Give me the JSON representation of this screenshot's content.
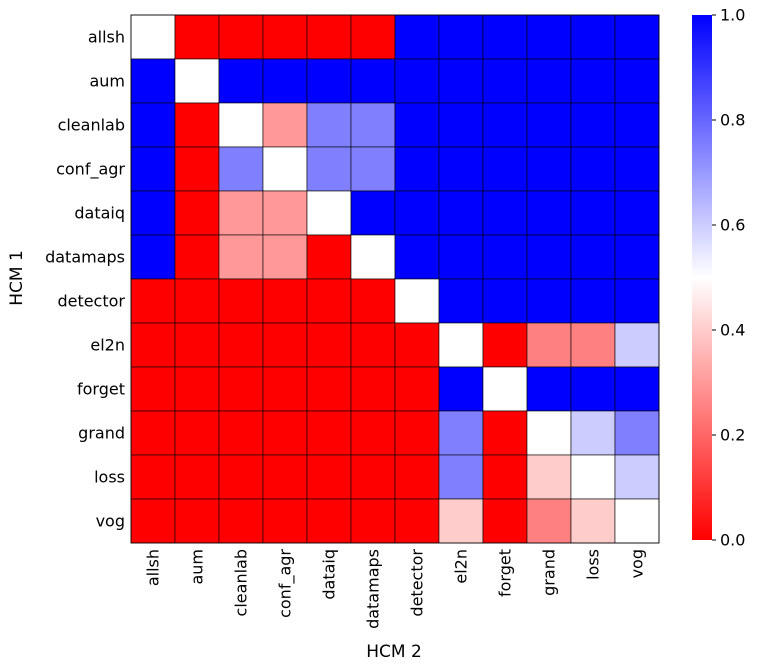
{
  "chart_data": {
    "type": "heatmap",
    "title": "",
    "xlabel": "HCM 2",
    "ylabel": "HCM 1",
    "x_categories": [
      "allsh",
      "aum",
      "cleanlab",
      "conf_agr",
      "dataiq",
      "datamaps",
      "detector",
      "el2n",
      "forget",
      "grand",
      "loss",
      "vog"
    ],
    "y_categories": [
      "allsh",
      "aum",
      "cleanlab",
      "conf_agr",
      "dataiq",
      "datamaps",
      "detector",
      "el2n",
      "forget",
      "grand",
      "loss",
      "vog"
    ],
    "values": [
      [
        0.5,
        0.0,
        0.0,
        0.0,
        0.0,
        0.0,
        1.0,
        1.0,
        1.0,
        1.0,
        1.0,
        1.0
      ],
      [
        1.0,
        0.5,
        1.0,
        1.0,
        1.0,
        1.0,
        1.0,
        1.0,
        1.0,
        1.0,
        1.0,
        1.0
      ],
      [
        1.0,
        0.0,
        0.5,
        0.3,
        0.75,
        0.75,
        1.0,
        1.0,
        1.0,
        1.0,
        1.0,
        1.0
      ],
      [
        1.0,
        0.0,
        0.75,
        0.5,
        0.75,
        0.75,
        1.0,
        1.0,
        1.0,
        1.0,
        1.0,
        1.0
      ],
      [
        1.0,
        0.0,
        0.3,
        0.3,
        0.5,
        1.0,
        1.0,
        1.0,
        1.0,
        1.0,
        1.0,
        1.0
      ],
      [
        1.0,
        0.0,
        0.3,
        0.3,
        0.0,
        0.5,
        1.0,
        1.0,
        1.0,
        1.0,
        1.0,
        1.0
      ],
      [
        0.0,
        0.0,
        0.0,
        0.0,
        0.0,
        0.0,
        0.5,
        1.0,
        1.0,
        1.0,
        1.0,
        1.0
      ],
      [
        0.0,
        0.0,
        0.0,
        0.0,
        0.0,
        0.0,
        0.0,
        0.5,
        0.0,
        0.25,
        0.25,
        0.6
      ],
      [
        0.0,
        0.0,
        0.0,
        0.0,
        0.0,
        0.0,
        0.0,
        1.0,
        0.5,
        1.0,
        1.0,
        1.0
      ],
      [
        0.0,
        0.0,
        0.0,
        0.0,
        0.0,
        0.0,
        0.0,
        0.75,
        0.0,
        0.5,
        0.6,
        0.75
      ],
      [
        0.0,
        0.0,
        0.0,
        0.0,
        0.0,
        0.0,
        0.0,
        0.75,
        0.0,
        0.4,
        0.5,
        0.6
      ],
      [
        0.0,
        0.0,
        0.0,
        0.0,
        0.0,
        0.0,
        0.0,
        0.4,
        0.0,
        0.25,
        0.4,
        0.5
      ]
    ],
    "colormap": "bwr_r",
    "colors": {
      "low": "#ff0000",
      "mid": "#ffffff",
      "high": "#0000ff"
    },
    "colorbar": {
      "range": [
        0.0,
        1.0
      ],
      "ticks": [
        "0.0",
        "0.2",
        "0.4",
        "0.6",
        "0.8",
        "1.0"
      ]
    }
  }
}
